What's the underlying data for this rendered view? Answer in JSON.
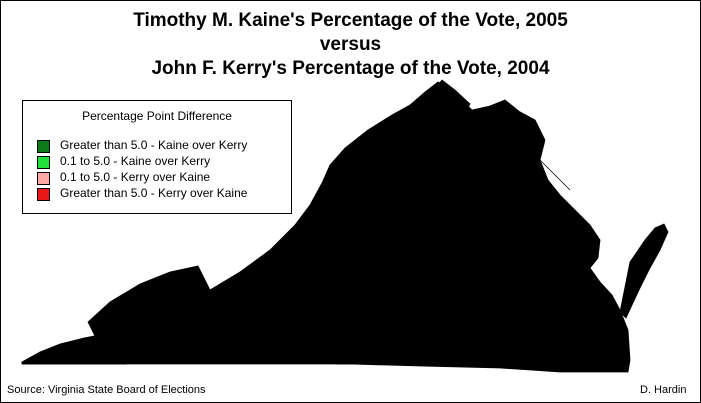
{
  "title_line1": "Timothy M. Kaine's Percentage of the Vote, 2005",
  "title_line2": "versus",
  "title_line3": "John F. Kerry's Percentage of the Vote, 2004",
  "legend": {
    "title": "Percentage Point Difference",
    "items": [
      {
        "label": "Greater than 5.0 - Kaine over Kerry",
        "color": "#0b7a1a"
      },
      {
        "label": "0.1 to 5.0 - Kaine over Kerry",
        "color": "#22e03a"
      },
      {
        "label": "0.1 to 5.0 - Kerry over Kaine",
        "color": "#ffa8a8"
      },
      {
        "label": "Greater than 5.0 - Kerry over Kaine",
        "color": "#e81818"
      }
    ]
  },
  "footer": {
    "source": "Source: Virginia State Board of Elections",
    "author": "D. Hardin"
  }
}
